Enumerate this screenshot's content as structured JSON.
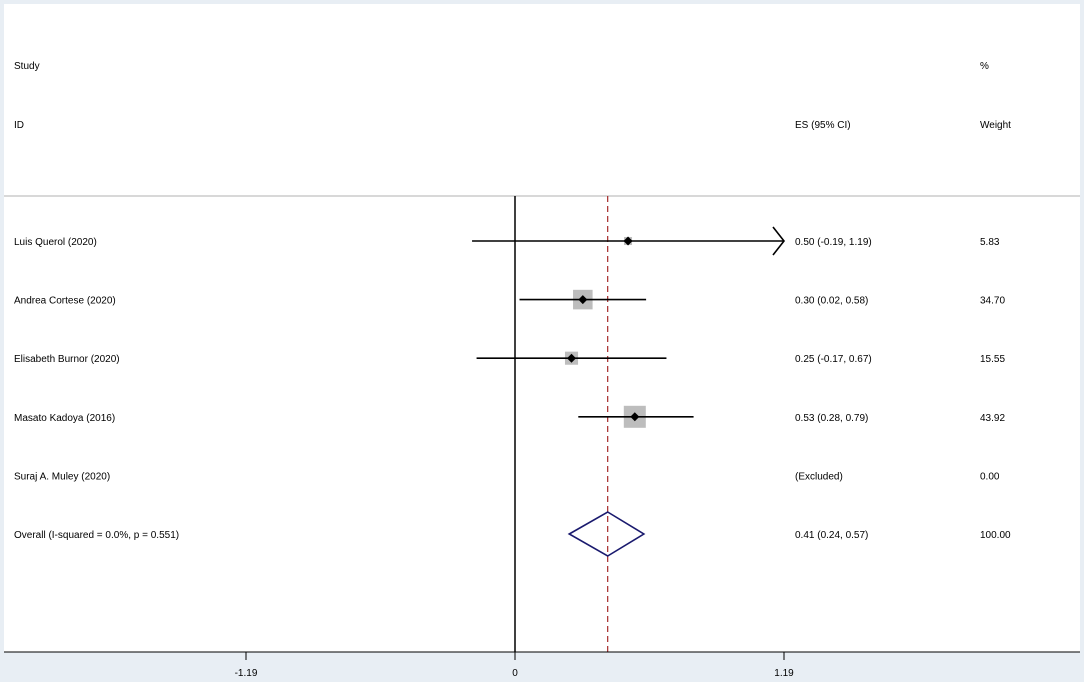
{
  "chart_data": {
    "type": "forest",
    "header": {
      "study_line1": "Study",
      "study_line2": "ID",
      "es_label": "ES (95% CI)",
      "weight_line1": "%",
      "weight_line2": "Weight"
    },
    "studies": [
      {
        "label": "Luis Querol (2020)",
        "es": 0.5,
        "lower": -0.19,
        "upper": 1.19,
        "es_text": "0.50 (-0.19, 1.19)",
        "weight": 5.83,
        "weight_text": "5.83",
        "ci_arrow_right": true
      },
      {
        "label": "Andrea Cortese (2020)",
        "es": 0.3,
        "lower": 0.02,
        "upper": 0.58,
        "es_text": "0.30 (0.02, 0.58)",
        "weight": 34.7,
        "weight_text": "34.70"
      },
      {
        "label": "Elisabeth Burnor (2020)",
        "es": 0.25,
        "lower": -0.17,
        "upper": 0.67,
        "es_text": "0.25 (-0.17, 0.67)",
        "weight": 15.55,
        "weight_text": "15.55"
      },
      {
        "label": "Masato Kadoya (2016)",
        "es": 0.53,
        "lower": 0.28,
        "upper": 0.79,
        "es_text": "0.53 (0.28, 0.79)",
        "weight": 43.92,
        "weight_text": "43.92"
      },
      {
        "label": "Suraj A. Muley (2020)",
        "es": null,
        "lower": null,
        "upper": null,
        "es_text": "(Excluded)",
        "weight": 0.0,
        "weight_text": "0.00"
      }
    ],
    "overall": {
      "label": "Overall  (I-squared = 0.0%, p = 0.551)",
      "es": 0.41,
      "lower": 0.24,
      "upper": 0.57,
      "es_text": "0.41 (0.24, 0.57)",
      "weight_text": "100.00"
    },
    "x_ticks": [
      -1.19,
      0,
      1.19
    ],
    "x_tick_labels": [
      "-1.19",
      "0",
      "1.19"
    ],
    "xlim": [
      -2.38,
      2.38
    ],
    "null_line": 0,
    "colors": {
      "background": "#ffffff",
      "frame": "#e8eef4",
      "box_fill": "#bdbdbd",
      "point": "#000000",
      "ci_line": "#000000",
      "overall_diamond": "#1a1a6e",
      "overall_line": "#a52a2a",
      "divider": "#b0b0b0"
    }
  }
}
